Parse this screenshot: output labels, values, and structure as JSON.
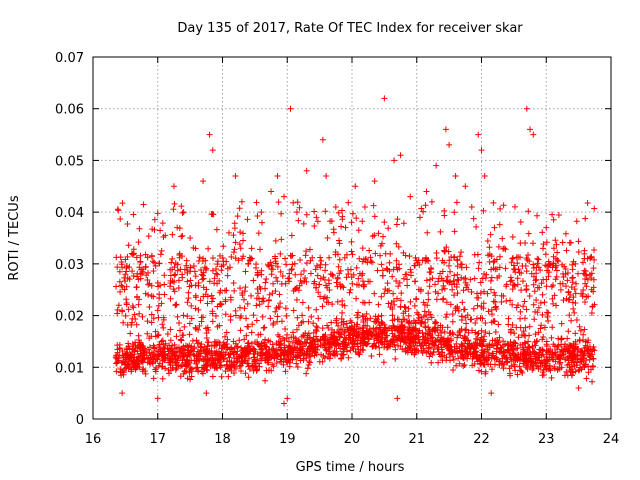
{
  "chart_data": {
    "type": "scatter",
    "title": "Day 135 of 2017, Rate Of TEC Index for receiver skar",
    "xlabel": "GPS time / hours",
    "ylabel": "ROTI / TECUs",
    "xlim": [
      16,
      24
    ],
    "ylim": [
      0,
      0.07
    ],
    "grid": true,
    "marker": "+",
    "color": "#ff0000",
    "xticks": [
      16,
      17,
      18,
      19,
      20,
      21,
      22,
      23,
      24
    ],
    "xtick_labels": [
      "16",
      "17",
      "18",
      "19",
      "20",
      "21",
      "22",
      "23",
      "24"
    ],
    "yticks": [
      0,
      0.01,
      0.02,
      0.03,
      0.04,
      0.05,
      0.06,
      0.07
    ],
    "ytick_labels": [
      "0",
      "0.01",
      "0.02",
      "0.03",
      "0.04",
      "0.05",
      "0.06",
      "0.07"
    ],
    "x_range_of_data": [
      16.35,
      23.75
    ],
    "series": [
      {
        "name": "ROTI",
        "points": [
          [
            16.4,
            0.022
          ],
          [
            16.5,
            0.028
          ],
          [
            16.6,
            0.032
          ],
          [
            16.7,
            0.027
          ],
          [
            16.85,
            0.024
          ],
          [
            16.9,
            0.016
          ],
          [
            17.0,
            0.021
          ],
          [
            17.1,
            0.026
          ],
          [
            17.25,
            0.045
          ],
          [
            17.3,
            0.037
          ],
          [
            17.4,
            0.04
          ],
          [
            17.5,
            0.035
          ],
          [
            17.7,
            0.046
          ],
          [
            17.8,
            0.055
          ],
          [
            17.85,
            0.052
          ],
          [
            17.9,
            0.029
          ],
          [
            18.1,
            0.036
          ],
          [
            18.2,
            0.047
          ],
          [
            18.3,
            0.042
          ],
          [
            18.45,
            0.033
          ],
          [
            18.6,
            0.04
          ],
          [
            18.75,
            0.044
          ],
          [
            18.85,
            0.047
          ],
          [
            18.95,
            0.043
          ],
          [
            19.05,
            0.06
          ],
          [
            19.15,
            0.04
          ],
          [
            19.3,
            0.048
          ],
          [
            19.45,
            0.039
          ],
          [
            19.55,
            0.054
          ],
          [
            19.6,
            0.047
          ],
          [
            19.75,
            0.041
          ],
          [
            19.9,
            0.037
          ],
          [
            20.05,
            0.045
          ],
          [
            20.2,
            0.041
          ],
          [
            20.35,
            0.046
          ],
          [
            20.5,
            0.062
          ],
          [
            20.65,
            0.05
          ],
          [
            20.75,
            0.051
          ],
          [
            20.9,
            0.043
          ],
          [
            21.05,
            0.039
          ],
          [
            21.15,
            0.044
          ],
          [
            21.3,
            0.049
          ],
          [
            21.45,
            0.056
          ],
          [
            21.5,
            0.053
          ],
          [
            21.6,
            0.047
          ],
          [
            21.75,
            0.045
          ],
          [
            21.85,
            0.041
          ],
          [
            21.95,
            0.055
          ],
          [
            22.0,
            0.052
          ],
          [
            22.05,
            0.047
          ],
          [
            22.2,
            0.037
          ],
          [
            22.35,
            0.033
          ],
          [
            22.5,
            0.029
          ],
          [
            22.6,
            0.034
          ],
          [
            22.7,
            0.06
          ],
          [
            22.75,
            0.056
          ],
          [
            22.8,
            0.055
          ],
          [
            22.95,
            0.033
          ],
          [
            23.0,
            0.037
          ],
          [
            23.15,
            0.031
          ],
          [
            23.3,
            0.029
          ],
          [
            23.45,
            0.03
          ],
          [
            23.6,
            0.028
          ],
          [
            23.7,
            0.025
          ],
          [
            16.45,
            0.005
          ],
          [
            17.0,
            0.004
          ],
          [
            17.75,
            0.005
          ],
          [
            18.95,
            0.003
          ],
          [
            19.0,
            0.004
          ],
          [
            20.7,
            0.004
          ],
          [
            22.15,
            0.005
          ],
          [
            23.5,
            0.006
          ]
        ]
      }
    ]
  }
}
